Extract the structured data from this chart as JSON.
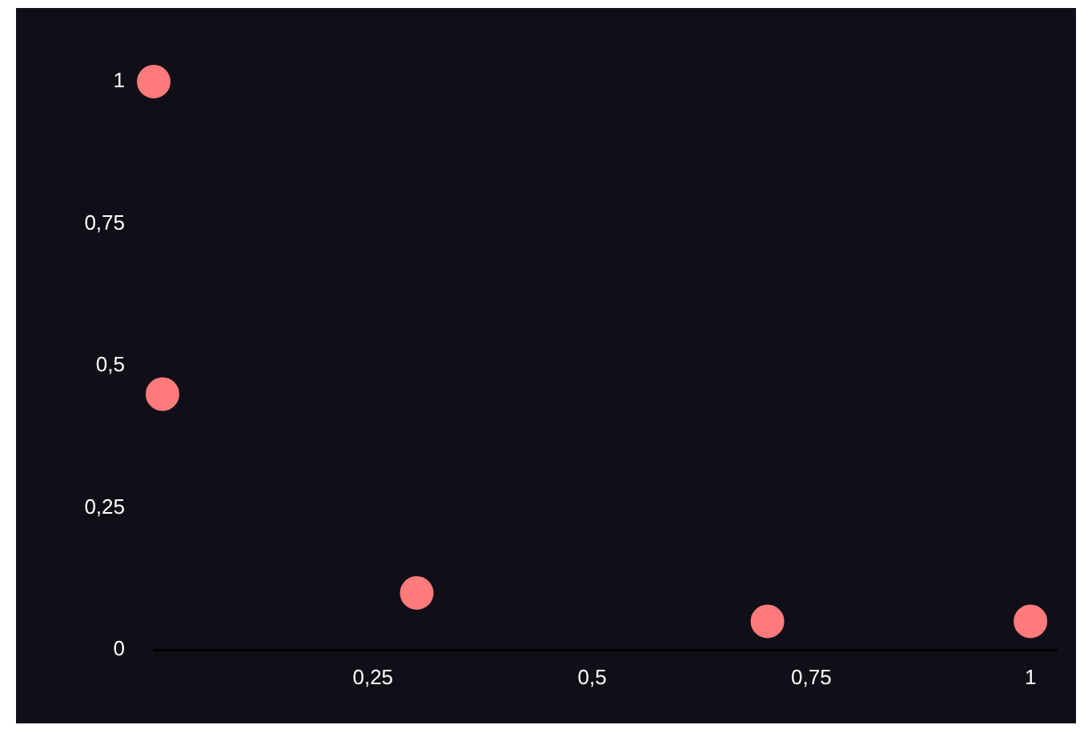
{
  "chart_data": {
    "type": "scatter",
    "x": [
      0,
      0.01,
      0.3,
      0.7,
      1
    ],
    "values": [
      1,
      0.45,
      0.1,
      0.05,
      0.05
    ],
    "color": "#ff7b7b",
    "marker": "circle",
    "grid": false,
    "legend": false,
    "xlim": [
      0,
      1.03
    ],
    "ylim": [
      0,
      1
    ],
    "xticks": [
      {
        "value": 0.25,
        "label": "0,25"
      },
      {
        "value": 0.5,
        "label": "0,5"
      },
      {
        "value": 0.75,
        "label": "0,75"
      },
      1
    ],
    "yticks": [
      0,
      {
        "value": 0.25,
        "label": "0,25"
      },
      {
        "value": 0.5,
        "label": "0,5"
      },
      {
        "value": 0.75,
        "label": "0,75"
      },
      1
    ]
  }
}
